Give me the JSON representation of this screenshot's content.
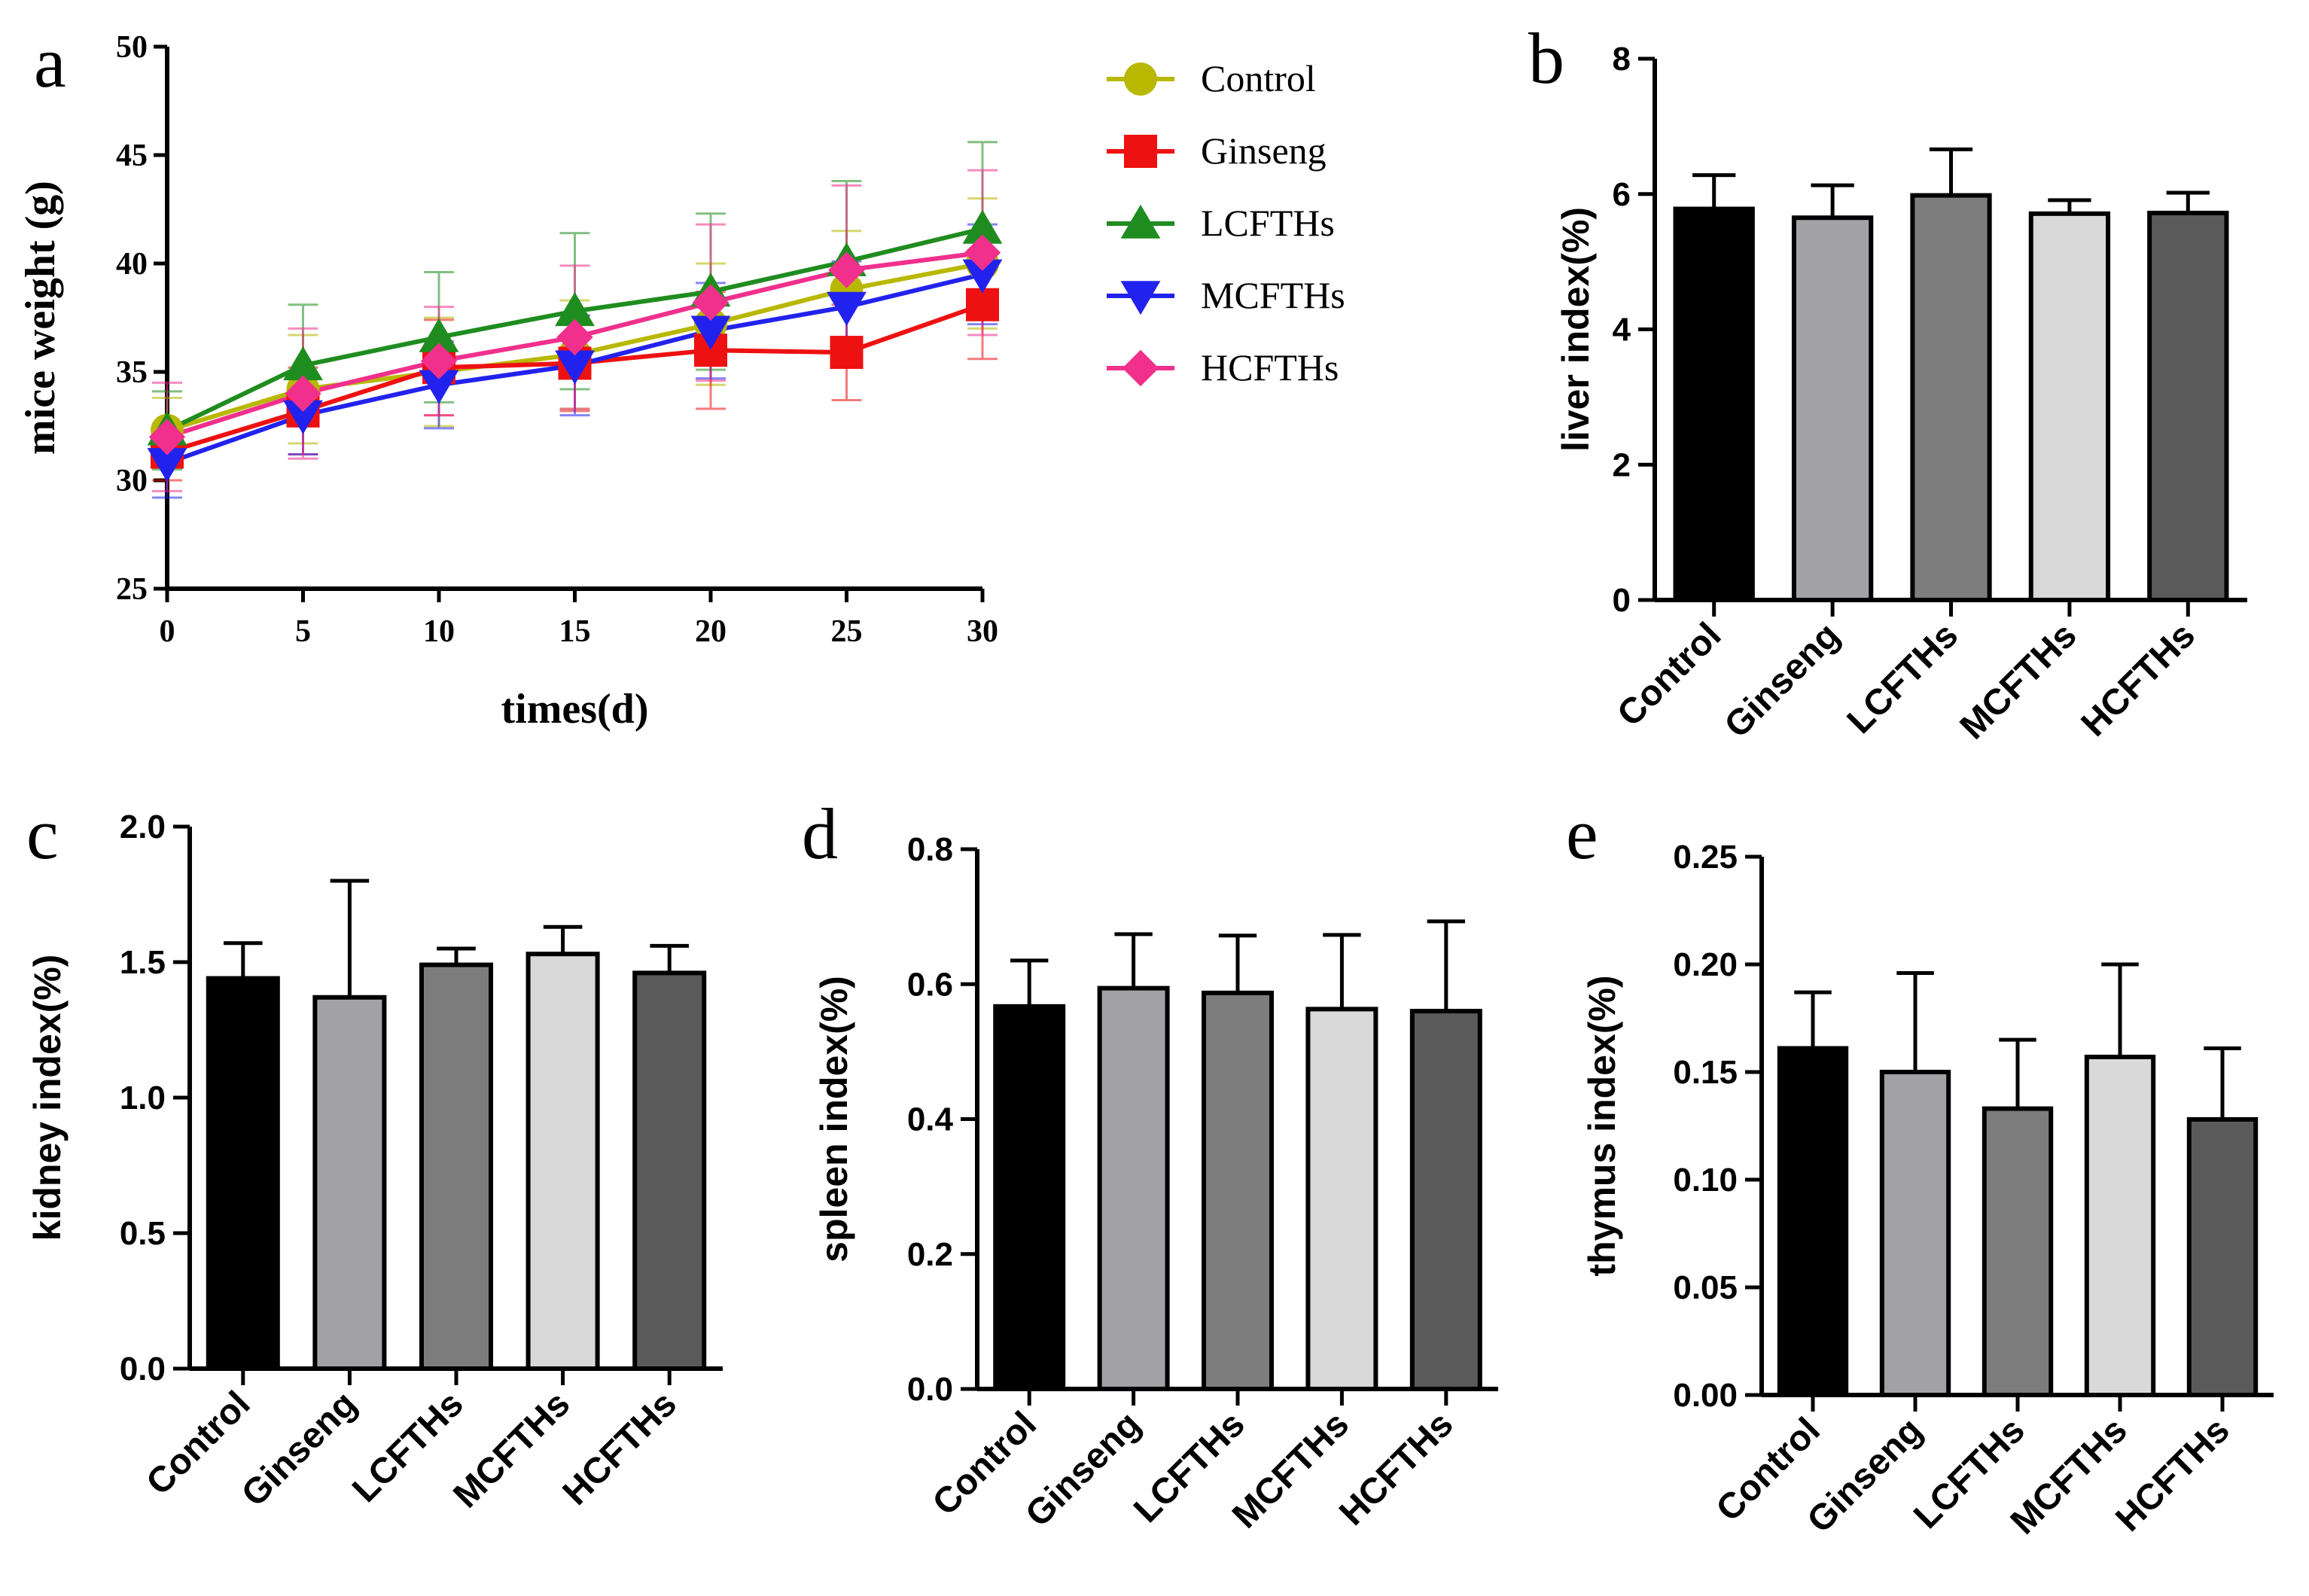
{
  "figure": {
    "panel_labels": [
      "a",
      "b",
      "c",
      "d",
      "e"
    ]
  },
  "chart_data": [
    {
      "panel": "a",
      "type": "line",
      "title": "",
      "xlabel": "times(d)",
      "ylabel": "mice weight (g)",
      "x": [
        0,
        5,
        10,
        15,
        20,
        25,
        30
      ],
      "xticks": [
        "0",
        "5",
        "10",
        "15",
        "20",
        "25",
        "30"
      ],
      "xlim": [
        0,
        30
      ],
      "ylim": [
        25,
        50
      ],
      "yticks": [
        "25",
        "30",
        "35",
        "40",
        "45",
        "50"
      ],
      "legend_position": "top-right",
      "series": [
        {
          "name": "Control",
          "color": "#b8b800",
          "marker": "circle",
          "values": [
            32.3,
            34.2,
            35.0,
            35.8,
            37.2,
            38.8,
            40.0
          ],
          "errors": [
            1.5,
            2.5,
            2.5,
            2.5,
            2.8,
            2.7,
            3.0
          ]
        },
        {
          "name": "Ginseng",
          "color": "#ee1111",
          "marker": "square",
          "values": [
            31.3,
            33.2,
            35.2,
            35.4,
            36.0,
            35.9,
            38.1
          ],
          "errors": [
            1.3,
            2.0,
            2.2,
            2.2,
            2.7,
            2.2,
            2.5
          ]
        },
        {
          "name": "LCFTHs",
          "color": "#1f8c1f",
          "marker": "triangle-up",
          "values": [
            32.3,
            35.3,
            36.6,
            37.8,
            38.7,
            40.1,
            41.6
          ],
          "errors": [
            1.8,
            2.8,
            3.0,
            3.6,
            3.6,
            3.7,
            4.0
          ]
        },
        {
          "name": "MCFTHs",
          "color": "#2222ee",
          "marker": "triangle-down",
          "values": [
            30.8,
            33.0,
            34.4,
            35.3,
            36.9,
            38.0,
            39.5
          ],
          "errors": [
            1.6,
            1.8,
            2.0,
            2.3,
            2.2,
            2.1,
            2.3
          ]
        },
        {
          "name": "HCFTHs",
          "color": "#f0308c",
          "marker": "diamond",
          "values": [
            32.0,
            34.0,
            35.5,
            36.6,
            38.2,
            39.7,
            40.5
          ],
          "errors": [
            2.5,
            3.0,
            2.5,
            3.3,
            3.6,
            3.9,
            3.8
          ]
        }
      ]
    },
    {
      "panel": "b",
      "type": "bar",
      "title": "",
      "xlabel": "",
      "ylabel": "liver index(%)",
      "categories": [
        "Control",
        "Ginseng",
        "LCFTHs",
        "MCFTHs",
        "HCFTHs"
      ],
      "values": [
        5.78,
        5.65,
        5.98,
        5.71,
        5.72
      ],
      "errors": [
        0.5,
        0.48,
        0.68,
        0.2,
        0.3
      ],
      "ylim": [
        0,
        8
      ],
      "yticks": [
        "0",
        "2",
        "4",
        "6",
        "8"
      ],
      "bar_colors": [
        "#000000",
        "#a2a2a6",
        "#7d7d7d",
        "#d9d9d9",
        "#5a5a5a"
      ]
    },
    {
      "panel": "c",
      "type": "bar",
      "title": "",
      "xlabel": "",
      "ylabel": "kidney index(%)",
      "categories": [
        "Control",
        "Ginseng",
        "LCFTHs",
        "MCFTHs",
        "HCFTHs"
      ],
      "values": [
        1.44,
        1.37,
        1.49,
        1.53,
        1.46
      ],
      "errors": [
        0.13,
        0.43,
        0.06,
        0.1,
        0.1
      ],
      "ylim": [
        0,
        2
      ],
      "yticks": [
        "0.0",
        "0.5",
        "1.0",
        "1.5",
        "2.0"
      ],
      "bar_colors": [
        "#000000",
        "#a2a2a6",
        "#7d7d7d",
        "#d9d9d9",
        "#5a5a5a"
      ]
    },
    {
      "panel": "d",
      "type": "bar",
      "title": "",
      "xlabel": "",
      "ylabel": "spleen index(%)",
      "categories": [
        "Control",
        "Ginseng",
        "LCFTHs",
        "MCFTHs",
        "HCFTHs"
      ],
      "values": [
        0.567,
        0.594,
        0.587,
        0.563,
        0.56
      ],
      "errors": [
        0.068,
        0.08,
        0.085,
        0.11,
        0.133
      ],
      "ylim": [
        0,
        0.8
      ],
      "yticks": [
        "0.0",
        "0.2",
        "0.4",
        "0.6",
        "0.8"
      ],
      "bar_colors": [
        "#000000",
        "#a2a2a6",
        "#7d7d7d",
        "#d9d9d9",
        "#5a5a5a"
      ]
    },
    {
      "panel": "e",
      "type": "bar",
      "title": "",
      "xlabel": "",
      "ylabel": "thymus index(%)",
      "categories": [
        "Control",
        "Ginseng",
        "LCFTHs",
        "MCFTHs",
        "HCFTHs"
      ],
      "values": [
        0.161,
        0.15,
        0.133,
        0.157,
        0.128
      ],
      "errors": [
        0.026,
        0.046,
        0.032,
        0.043,
        0.033
      ],
      "ylim": [
        0,
        0.25
      ],
      "yticks": [
        "0.00",
        "0.05",
        "0.10",
        "0.15",
        "0.20",
        "0.25"
      ],
      "bar_colors": [
        "#000000",
        "#a2a2a6",
        "#7d7d7d",
        "#d9d9d9",
        "#5a5a5a"
      ]
    }
  ]
}
